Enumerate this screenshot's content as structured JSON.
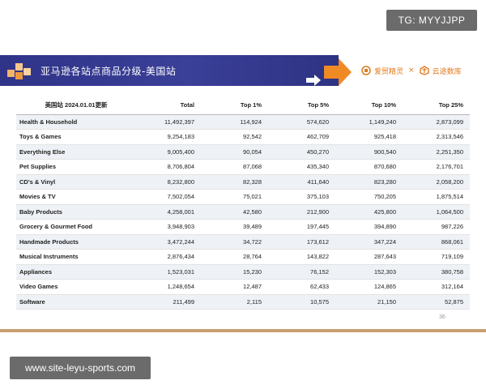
{
  "watermark_tag": "TG: MYYJJPP",
  "watermark_url": "www.site-leyu-sports.com",
  "banner": {
    "title": "亚马逊各站点商品分级-美国站",
    "logo_left": "爱贸精灵",
    "logo_sep": "×",
    "logo_right": "云途数库"
  },
  "table": {
    "headers": [
      "美国站 2024.01.01更新",
      "Total",
      "Top 1%",
      "Top 5%",
      "Top 10%",
      "Top 25%"
    ],
    "rows": [
      [
        "Health & Household",
        "11,492,397",
        "114,924",
        "574,620",
        "1,149,240",
        "2,873,099"
      ],
      [
        "Toys & Games",
        "9,254,183",
        "92,542",
        "462,709",
        "925,418",
        "2,313,546"
      ],
      [
        "Everything Else",
        "9,005,400",
        "90,054",
        "450,270",
        "900,540",
        "2,251,350"
      ],
      [
        "Pet Supplies",
        "8,706,804",
        "87,068",
        "435,340",
        "870,680",
        "2,176,701"
      ],
      [
        "CD's & Vinyl",
        "8,232,800",
        "82,328",
        "411,640",
        "823,280",
        "2,058,200"
      ],
      [
        "Movies & TV",
        "7,502,054",
        "75,021",
        "375,103",
        "750,205",
        "1,875,514"
      ],
      [
        "Baby Products",
        "4,258,001",
        "42,580",
        "212,900",
        "425,800",
        "1,064,500"
      ],
      [
        "Grocery & Gourmet Food",
        "3,948,903",
        "39,489",
        "197,445",
        "394,890",
        "987,226"
      ],
      [
        "Handmade Products",
        "3,472,244",
        "34,722",
        "173,612",
        "347,224",
        "868,061"
      ],
      [
        "Musical Instruments",
        "2,876,434",
        "28,764",
        "143,822",
        "287,643",
        "719,109"
      ],
      [
        "Appliances",
        "1,523,031",
        "15,230",
        "76,152",
        "152,303",
        "380,758"
      ],
      [
        "Video Games",
        "1,248,654",
        "12,487",
        "62,433",
        "124,865",
        "312,164"
      ],
      [
        "Software",
        "211,499",
        "2,115",
        "10,575",
        "21,150",
        "52,875"
      ]
    ]
  },
  "page_number": "36",
  "colors": {
    "banner_blue": "#2f3488",
    "accent_orange": "#f08a24",
    "row_stripe": "#eef1f6"
  }
}
